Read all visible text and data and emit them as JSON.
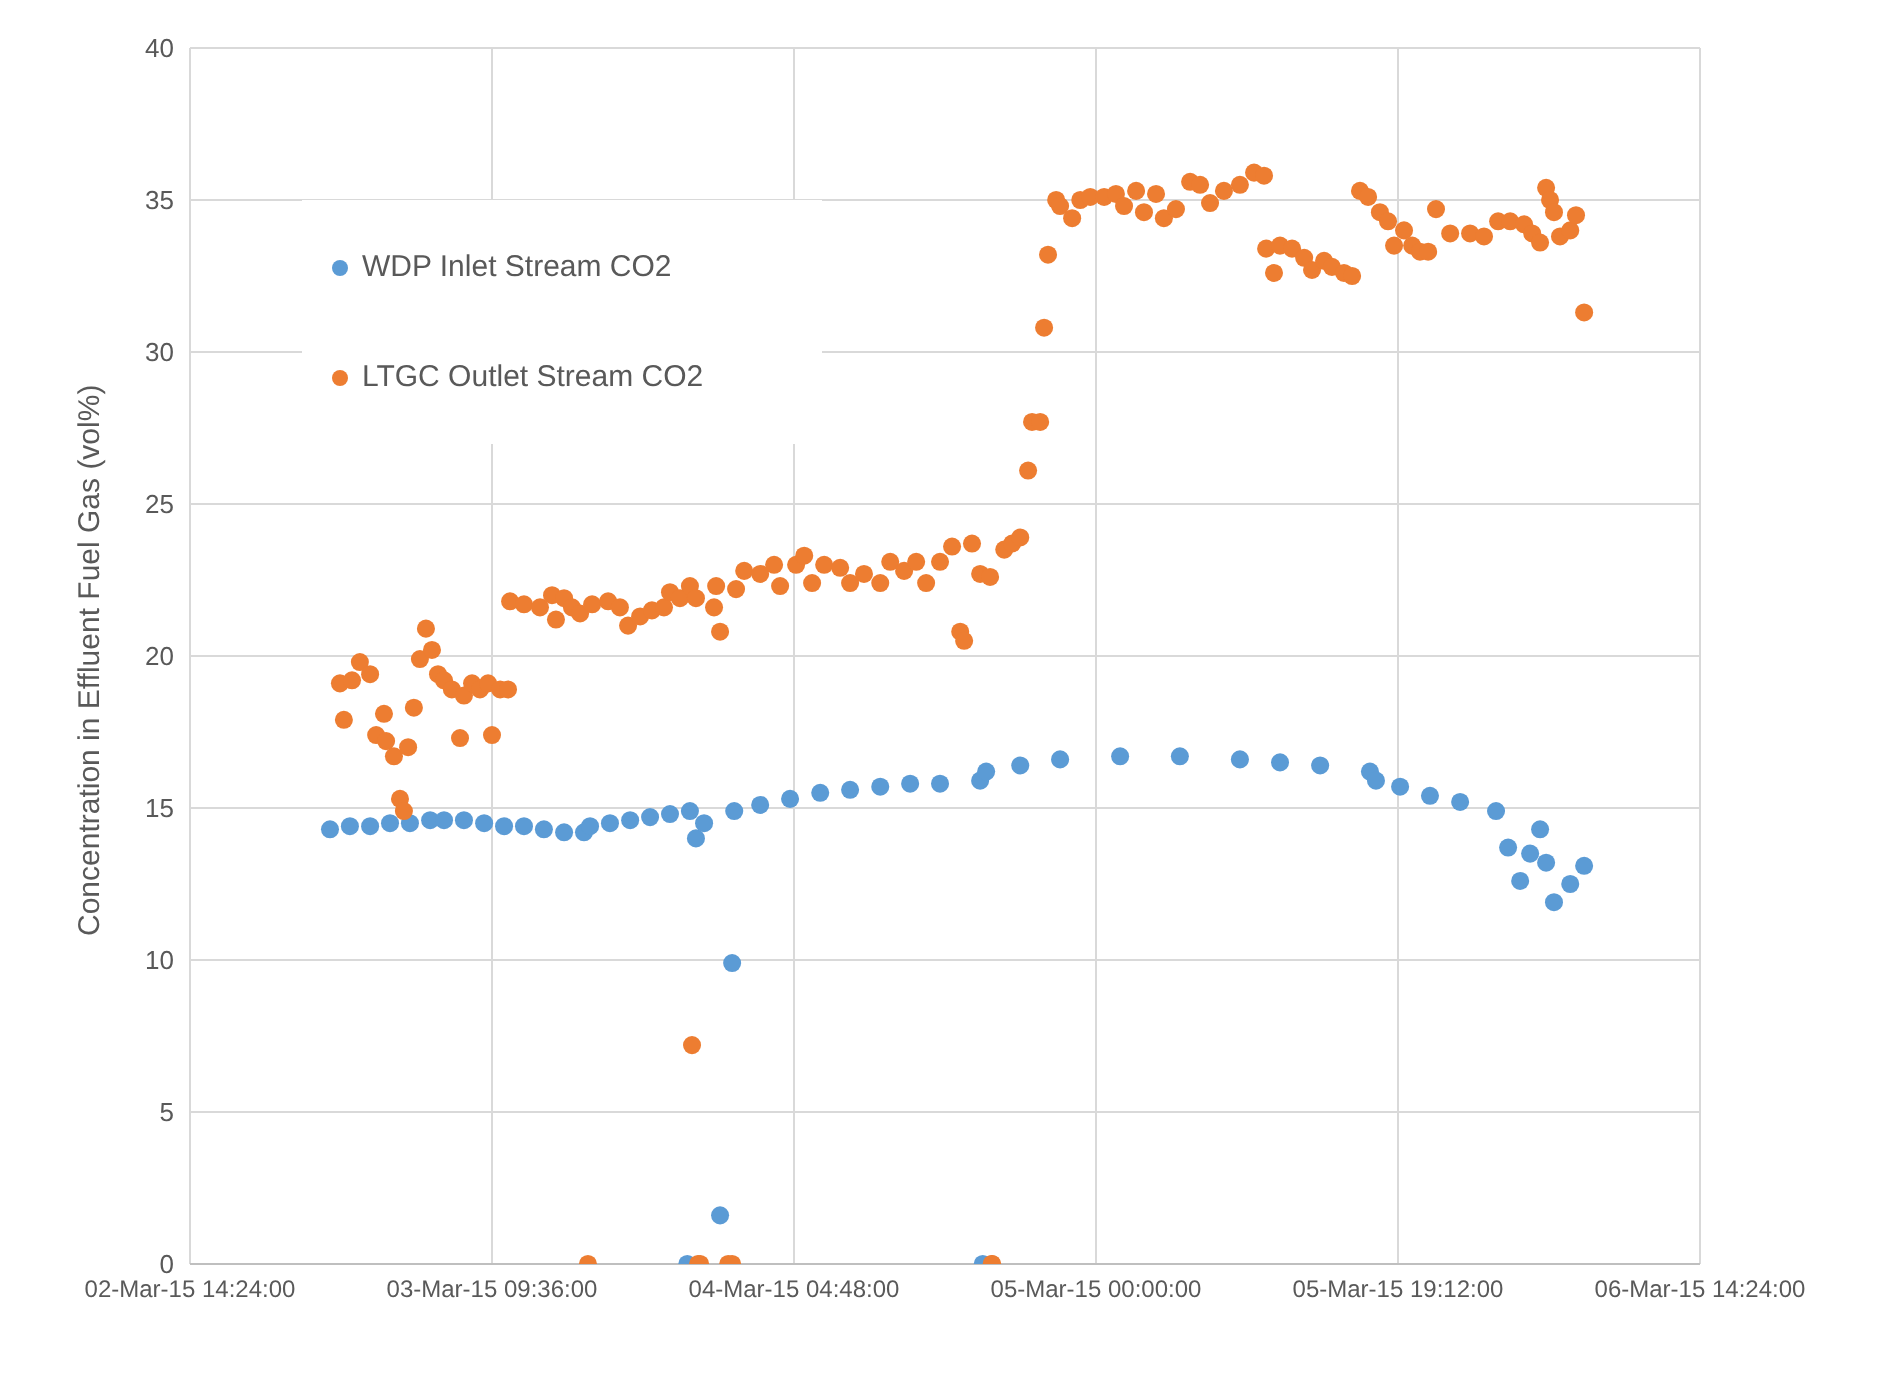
{
  "chart_data": {
    "type": "scatter",
    "ylabel": "Concentration in Effluent Fuel Gas (vol%)",
    "xlim": [
      "--03-02T14:24",
      "--03-06T14:24"
    ],
    "xticks": [
      {
        "value": "--03-02T14:24",
        "label": "02-Mar-15 14:24:00"
      },
      {
        "value": "--03-03T09:36",
        "label": "03-Mar-15 09:36:00"
      },
      {
        "value": "--03-04T04:48",
        "label": "04-Mar-15 04:48:00"
      },
      {
        "value": "--03-05T00:00",
        "label": "05-Mar-15 00:00:00"
      },
      {
        "value": "--03-05T19:12",
        "label": "05-Mar-15 19:12:00"
      },
      {
        "value": "--03-06T14:24",
        "label": "06-Mar-15 14:24:00"
      }
    ],
    "ylim": [
      0,
      40
    ],
    "yticks": [
      0,
      5,
      10,
      15,
      20,
      25,
      30,
      35,
      40
    ],
    "grid": true,
    "legend": "top left",
    "marker": "circle",
    "series": [
      {
        "name": "WDP Inlet Stream CO2",
        "color": "#5b9bd5",
        "x": [
          "--03-02T23:18",
          "--03-03T00:34",
          "--03-03T01:51",
          "--03-03T03:07",
          "--03-03T04:23",
          "--03-03T05:40",
          "--03-03T06:33",
          "--03-03T07:49",
          "--03-03T09:06",
          "--03-03T10:22",
          "--03-03T11:38",
          "--03-03T12:54",
          "--03-03T14:11",
          "--03-03T15:27",
          "--03-03T15:50",
          "--03-03T17:06",
          "--03-03T18:23",
          "--03-03T19:39",
          "--03-03T20:55",
          "--03-03T22:11",
          "--03-03T22:01",
          "--03-03T22:34",
          "--03-03T23:05",
          "--03-04T00:06",
          "--03-04T00:52",
          "--03-04T01:00",
          "--03-04T02:39",
          "--03-04T04:33",
          "--03-04T06:28",
          "--03-04T08:22",
          "--03-04T10:17",
          "--03-04T12:11",
          "--03-04T14:05",
          "--03-04T16:38",
          "--03-04T17:01",
          "--03-04T16:48",
          "--03-04T19:11",
          "--03-04T21:43",
          "--03-05T01:32",
          "--03-05T05:20",
          "--03-05T09:09",
          "--03-05T11:42",
          "--03-05T14:15",
          "--03-05T17:25",
          "--03-05T17:48",
          "--03-05T19:20",
          "--03-05T21:14",
          "--03-05T23:09",
          "--03-06T01:26",
          "--03-06T02:12",
          "--03-06T02:58",
          "--03-06T03:36",
          "--03-06T04:14",
          "--03-06T04:37",
          "--03-06T05:07",
          "--03-06T06:09",
          "--03-06T07:02"
        ],
        "values": [
          14.3,
          14.4,
          14.4,
          14.5,
          14.5,
          14.6,
          14.6,
          14.6,
          14.5,
          14.4,
          14.4,
          14.3,
          14.2,
          14.2,
          14.4,
          14.5,
          14.6,
          14.7,
          14.8,
          14.9,
          0,
          14.0,
          14.5,
          1.6,
          9.9,
          14.9,
          15.1,
          15.3,
          15.5,
          15.6,
          15.7,
          15.8,
          15.8,
          15.9,
          16.2,
          0,
          16.4,
          16.6,
          16.7,
          16.7,
          16.6,
          16.5,
          16.4,
          16.2,
          15.9,
          15.7,
          15.4,
          15.2,
          14.9,
          13.7,
          12.6,
          13.5,
          14.3,
          13.2,
          11.9,
          12.5,
          13.1
        ]
      },
      {
        "name": "LTGC Outlet Stream CO2",
        "color": "#ed7d31",
        "x": [
          "--03-02T23:56",
          "--03-03T00:11",
          "--03-03T00:42",
          "--03-03T01:12",
          "--03-03T01:51",
          "--03-03T02:14",
          "--03-03T02:44",
          "--03-03T02:52",
          "--03-03T03:22",
          "--03-03T03:45",
          "--03-03T04:00",
          "--03-03T04:16",
          "--03-03T04:38",
          "--03-03T05:01",
          "--03-03T05:24",
          "--03-03T05:47",
          "--03-03T06:10",
          "--03-03T06:33",
          "--03-03T07:03",
          "--03-03T07:34",
          "--03-03T07:49",
          "--03-03T08:20",
          "--03-03T08:50",
          "--03-03T09:21",
          "--03-03T09:36",
          "--03-03T10:07",
          "--03-03T10:37",
          "--03-03T10:45",
          "--03-03T11:38",
          "--03-03T12:39",
          "--03-03T13:25",
          "--03-03T13:40",
          "--03-03T14:11",
          "--03-03T14:41",
          "--03-03T15:12",
          "--03-03T15:42",
          "--03-03T15:58",
          "--03-03T16:59",
          "--03-03T17:44",
          "--03-03T18:15",
          "--03-03T19:01",
          "--03-03T19:46",
          "--03-03T20:32",
          "--03-03T20:55",
          "--03-03T21:33",
          "--03-03T22:11",
          "--03-03T22:42",
          "--03-03T22:19",
          "--03-03T22:34",
          "--03-03T22:50",
          "--03-03T23:43",
          "--03-03T23:51",
          "--03-04T00:06",
          "--03-04T00:37",
          "--03-04T00:52",
          "--03-04T01:07",
          "--03-04T01:38",
          "--03-04T02:39",
          "--03-04T03:32",
          "--03-04T03:55",
          "--03-04T04:56",
          "--03-04T05:27",
          "--03-04T05:57",
          "--03-04T06:43",
          "--03-04T07:44",
          "--03-04T08:22",
          "--03-04T09:15",
          "--03-04T10:17",
          "--03-04T10:55",
          "--03-04T11:48",
          "--03-04T12:34",
          "--03-04T13:12",
          "--03-04T14:05",
          "--03-04T14:51",
          "--03-04T15:22",
          "--03-04T15:37",
          "--03-04T16:07",
          "--03-04T16:38",
          "--03-04T17:22",
          "--03-04T17:16",
          "--03-04T17:24",
          "--03-04T18:10",
          "--03-04T18:40",
          "--03-04T19:11",
          "--03-04T19:41",
          "--03-04T19:56",
          "--03-04T20:27",
          "--03-04T20:42",
          "--03-04T20:57",
          "--03-04T21:28",
          "--03-04T21:43",
          "--03-04T22:29",
          "--03-04T23:00",
          "--03-04T23:38",
          "--03-05T00:31",
          "--03-05T01:16",
          "--03-05T01:47",
          "--03-05T02:33",
          "--03-05T03:03",
          "--03-05T03:49",
          "--03-05T04:19",
          "--03-05T05:05",
          "--03-05T05:59",
          "--03-05T06:37",
          "--03-05T07:15",
          "--03-05T08:08",
          "--03-05T09:09",
          "--03-05T10:03",
          "--03-05T10:41",
          "--03-05T10:49",
          "--03-05T11:19",
          "--03-05T11:42",
          "--03-05T12:28",
          "--03-05T13:14",
          "--03-05T13:44",
          "--03-05T14:30",
          "--03-05T15:00",
          "--03-05T15:46",
          "--03-05T16:17",
          "--03-05T16:47",
          "--03-05T17:18",
          "--03-05T18:03",
          "--03-05T18:34",
          "--03-05T18:57",
          "--03-05T19:35",
          "--03-05T20:06",
          "--03-05T20:36",
          "--03-05T21:07",
          "--03-05T21:37",
          "--03-05T22:31",
          "--03-05T23:47",
          "--03-06T00:40",
          "--03-06T01:34",
          "--03-06T02:20",
          "--03-06T03:13",
          "--03-06T03:44",
          "--03-06T04:14",
          "--03-06T04:37",
          "--03-06T04:52",
          "--03-06T05:07",
          "--03-06T05:30",
          "--03-06T06:09",
          "--03-06T06:31",
          "--03-06T07:02"
        ],
        "values": [
          19.1,
          17.9,
          19.2,
          19.8,
          19.4,
          17.4,
          18.1,
          17.2,
          16.7,
          15.3,
          14.9,
          17.0,
          18.3,
          19.9,
          20.9,
          20.2,
          19.4,
          19.2,
          18.9,
          17.3,
          18.7,
          19.1,
          18.9,
          19.1,
          17.4,
          18.9,
          18.9,
          21.8,
          21.7,
          21.6,
          22.0,
          21.2,
          21.9,
          21.6,
          21.4,
          0,
          21.7,
          21.8,
          21.6,
          21.0,
          21.3,
          21.5,
          21.6,
          22.1,
          21.9,
          22.3,
          0,
          7.2,
          21.9,
          0,
          21.6,
          22.3,
          20.8,
          0,
          0,
          22.2,
          22.8,
          22.7,
          23.0,
          22.3,
          23.0,
          23.3,
          22.4,
          23.0,
          22.9,
          22.4,
          22.7,
          22.4,
          23.1,
          22.8,
          23.1,
          22.4,
          23.1,
          23.6,
          20.8,
          20.5,
          23.7,
          22.7,
          0,
          22.6,
          0,
          23.5,
          23.7,
          23.9,
          26.1,
          27.7,
          27.7,
          30.8,
          33.2,
          35.0,
          34.8,
          34.4,
          35.0,
          35.1,
          35.1,
          35.2,
          34.8,
          35.3,
          34.6,
          35.2,
          34.4,
          34.7,
          35.6,
          35.5,
          34.9,
          35.3,
          35.5,
          35.9,
          35.8,
          33.4,
          32.6,
          33.5,
          33.4,
          33.1,
          32.7,
          33.0,
          32.8,
          32.6,
          32.5,
          35.3,
          35.1,
          34.6,
          34.3,
          33.5,
          34.0,
          33.5,
          33.3,
          33.3,
          34.7,
          33.9,
          33.9,
          33.8,
          34.3,
          34.3,
          34.2,
          33.9,
          33.6,
          35.4,
          35.0,
          34.6,
          33.8,
          34.0,
          34.5,
          31.3
        ]
      }
    ]
  }
}
